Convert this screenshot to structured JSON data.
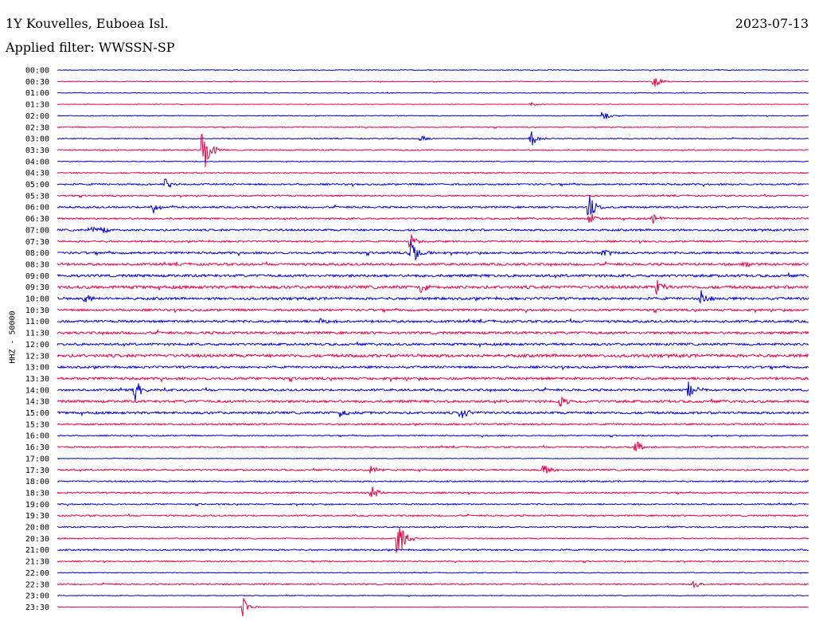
{
  "header": {
    "station": "1Y Kouvelles, Euboea Isl.",
    "filter": "Applied filter: WWSSN-SP",
    "date": "2023-07-13"
  },
  "axis": {
    "ylabel": "HHZ - 50000"
  },
  "colors": {
    "even_trace": "#0000dd",
    "odd_trace": "#ee0044",
    "label": "#000000"
  },
  "chart_data": {
    "type": "line",
    "title": "1Y Kouvelles, Euboea Isl.",
    "subtitle": "Applied filter: WWSSN-SP",
    "ylabel": "HHZ - 50000",
    "x_range_minutes": [
      0,
      30
    ],
    "categories": [
      "00:00",
      "00:30",
      "01:00",
      "01:30",
      "02:00",
      "02:30",
      "03:00",
      "03:30",
      "04:00",
      "04:30",
      "05:00",
      "05:30",
      "06:00",
      "06:30",
      "07:00",
      "07:30",
      "08:00",
      "08:30",
      "09:00",
      "09:30",
      "10:00",
      "10:30",
      "11:00",
      "11:30",
      "12:00",
      "12:30",
      "13:00",
      "13:30",
      "14:00",
      "14:30",
      "15:00",
      "15:30",
      "16:00",
      "16:30",
      "17:00",
      "17:30",
      "18:00",
      "18:30",
      "19:00",
      "19:30",
      "20:00",
      "20:30",
      "21:00",
      "21:30",
      "22:00",
      "22:30",
      "23:00",
      "23:30"
    ],
    "noise_levels": [
      0.5,
      0.4,
      0.4,
      0.3,
      0.5,
      0.6,
      0.6,
      0.7,
      0.5,
      0.8,
      1.0,
      0.9,
      1.1,
      1.0,
      1.2,
      1.0,
      1.3,
      1.4,
      1.6,
      1.8,
      1.5,
      1.3,
      1.4,
      1.5,
      1.4,
      1.8,
      1.3,
      1.5,
      1.3,
      1.5,
      1.4,
      1.0,
      0.7,
      0.9,
      0.4,
      1.0,
      0.8,
      0.9,
      0.8,
      0.9,
      0.8,
      0.7,
      0.9,
      0.7,
      0.5,
      0.8,
      0.5,
      0.3
    ],
    "events": [
      {
        "row": 1,
        "minute": 23.8,
        "amp": 10
      },
      {
        "row": 3,
        "minute": 18.9,
        "amp": 3
      },
      {
        "row": 4,
        "minute": 21.8,
        "amp": 8
      },
      {
        "row": 6,
        "minute": 14.5,
        "amp": 6
      },
      {
        "row": 6,
        "minute": 18.9,
        "amp": 12
      },
      {
        "row": 7,
        "minute": 5.8,
        "amp": 40
      },
      {
        "row": 10,
        "minute": 4.3,
        "amp": 9
      },
      {
        "row": 12,
        "minute": 3.8,
        "amp": 9
      },
      {
        "row": 12,
        "minute": 21.2,
        "amp": 18
      },
      {
        "row": 13,
        "minute": 21.2,
        "amp": 14
      },
      {
        "row": 13,
        "minute": 23.8,
        "amp": 8
      },
      {
        "row": 14,
        "minute": 1.3,
        "amp": 6
      },
      {
        "row": 14,
        "minute": 1.8,
        "amp": 6
      },
      {
        "row": 15,
        "minute": 14.1,
        "amp": 10
      },
      {
        "row": 16,
        "minute": 14.1,
        "amp": 24
      },
      {
        "row": 16,
        "minute": 21.8,
        "amp": 7
      },
      {
        "row": 17,
        "minute": 27.4,
        "amp": 8
      },
      {
        "row": 19,
        "minute": 14.5,
        "amp": 9
      },
      {
        "row": 19,
        "minute": 23.9,
        "amp": 12
      },
      {
        "row": 20,
        "minute": 1.1,
        "amp": 8
      },
      {
        "row": 20,
        "minute": 25.7,
        "amp": 12
      },
      {
        "row": 22,
        "minute": 10.5,
        "amp": 7
      },
      {
        "row": 28,
        "minute": 3.1,
        "amp": 14
      },
      {
        "row": 28,
        "minute": 25.2,
        "amp": 14
      },
      {
        "row": 29,
        "minute": 20.1,
        "amp": 10
      },
      {
        "row": 30,
        "minute": 11.3,
        "amp": 8
      },
      {
        "row": 30,
        "minute": 16.1,
        "amp": 10
      },
      {
        "row": 33,
        "minute": 23.1,
        "amp": 9
      },
      {
        "row": 35,
        "minute": 19.4,
        "amp": 10
      },
      {
        "row": 35,
        "minute": 12.5,
        "amp": 7
      },
      {
        "row": 37,
        "minute": 12.5,
        "amp": 14
      },
      {
        "row": 41,
        "minute": 13.6,
        "amp": 36
      },
      {
        "row": 45,
        "minute": 25.4,
        "amp": 8
      },
      {
        "row": 47,
        "minute": 7.4,
        "amp": 14
      }
    ],
    "grid": false
  }
}
